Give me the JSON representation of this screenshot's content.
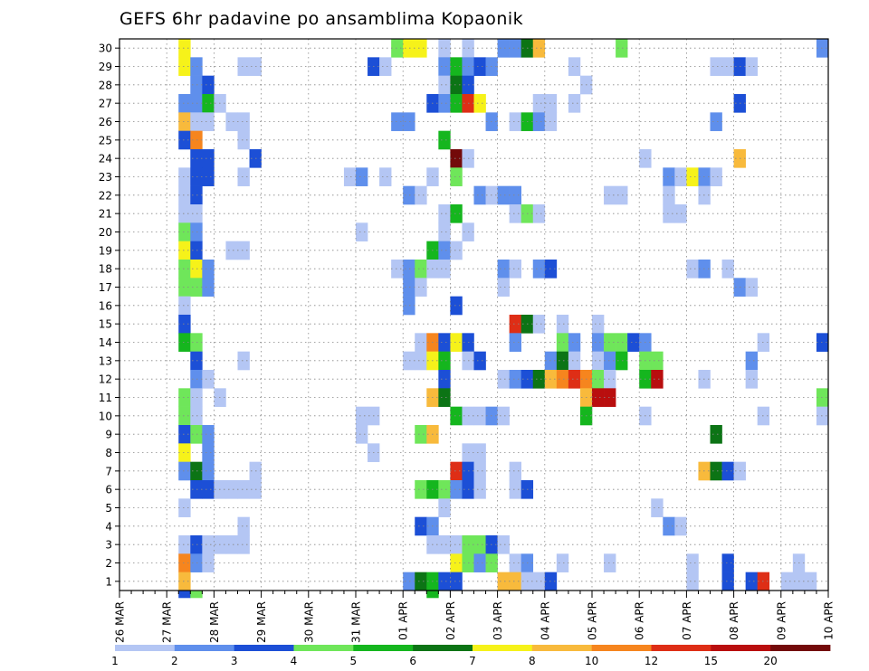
{
  "chart_data": {
    "type": "heatmap",
    "title": "GEFS 6hr padavine po ansamblima Kopaonik",
    "xlabel": "",
    "ylabel": "",
    "x_tick_labels": [
      "26 MAR",
      "27 MAR",
      "28 MAR",
      "29 MAR",
      "30 MAR",
      "31 MAR",
      "01 APR",
      "02 APR",
      "03 APR",
      "04 APR",
      "05 APR",
      "06 APR",
      "07 APR",
      "08 APR",
      "09 APR",
      "10 APR"
    ],
    "y_tick_labels": [
      "1",
      "2",
      "3",
      "4",
      "5",
      "6",
      "7",
      "8",
      "9",
      "10",
      "11",
      "12",
      "13",
      "14",
      "15",
      "16",
      "17",
      "18",
      "19",
      "20",
      "21",
      "22",
      "23",
      "24",
      "25",
      "26",
      "27",
      "28",
      "29",
      "30"
    ],
    "x_step_hours": 6,
    "x_step_count": 60,
    "ylim": [
      0.5,
      30.5
    ],
    "grid": true,
    "legend_position": "bottom",
    "colorbar": {
      "boundaries": [
        "1",
        "2",
        "3",
        "4",
        "5",
        "6",
        "7",
        "8",
        "10",
        "12",
        "15",
        "20"
      ],
      "colors": [
        "#b4c6f4",
        "#5f8fec",
        "#1c4fd6",
        "#6fe65a",
        "#15b61e",
        "#0c7415",
        "#f6f21a",
        "#f8ba3c",
        "#f6851e",
        "#de2e16",
        "#b90e0e",
        "#730a0a"
      ]
    },
    "cells": [
      [
        30,
        5,
        6
      ],
      [
        30,
        23,
        3
      ],
      [
        30,
        24,
        6
      ],
      [
        30,
        25,
        6
      ],
      [
        30,
        27,
        0
      ],
      [
        30,
        29,
        0
      ],
      [
        30,
        32,
        1
      ],
      [
        30,
        33,
        1
      ],
      [
        30,
        34,
        5
      ],
      [
        30,
        35,
        7
      ],
      [
        30,
        42,
        3
      ],
      [
        30,
        59,
        1
      ],
      [
        29,
        5,
        6
      ],
      [
        29,
        6,
        1
      ],
      [
        29,
        10,
        0
      ],
      [
        29,
        11,
        0
      ],
      [
        29,
        21,
        2
      ],
      [
        29,
        22,
        0
      ],
      [
        29,
        27,
        1
      ],
      [
        29,
        28,
        4
      ],
      [
        29,
        29,
        1
      ],
      [
        29,
        30,
        2
      ],
      [
        29,
        31,
        1
      ],
      [
        29,
        38,
        0
      ],
      [
        29,
        50,
        0
      ],
      [
        29,
        51,
        0
      ],
      [
        29,
        52,
        2
      ],
      [
        29,
        53,
        0
      ],
      [
        28,
        6,
        1
      ],
      [
        28,
        7,
        2
      ],
      [
        28,
        27,
        0
      ],
      [
        28,
        28,
        5
      ],
      [
        28,
        29,
        2
      ],
      [
        28,
        39,
        0
      ],
      [
        27,
        5,
        1
      ],
      [
        27,
        6,
        1
      ],
      [
        27,
        7,
        4
      ],
      [
        27,
        8,
        0
      ],
      [
        27,
        26,
        2
      ],
      [
        27,
        27,
        1
      ],
      [
        27,
        28,
        4
      ],
      [
        27,
        29,
        9
      ],
      [
        27,
        30,
        6
      ],
      [
        27,
        35,
        0
      ],
      [
        27,
        36,
        0
      ],
      [
        27,
        38,
        0
      ],
      [
        27,
        52,
        2
      ],
      [
        26,
        5,
        7
      ],
      [
        26,
        6,
        0
      ],
      [
        26,
        7,
        0
      ],
      [
        26,
        9,
        0
      ],
      [
        26,
        10,
        0
      ],
      [
        26,
        23,
        1
      ],
      [
        26,
        24,
        1
      ],
      [
        26,
        31,
        1
      ],
      [
        26,
        33,
        0
      ],
      [
        26,
        34,
        4
      ],
      [
        26,
        35,
        1
      ],
      [
        26,
        36,
        0
      ],
      [
        26,
        50,
        1
      ],
      [
        25,
        5,
        2
      ],
      [
        25,
        6,
        8
      ],
      [
        25,
        10,
        0
      ],
      [
        25,
        27,
        4
      ],
      [
        24,
        6,
        2
      ],
      [
        24,
        7,
        2
      ],
      [
        24,
        11,
        2
      ],
      [
        24,
        28,
        11
      ],
      [
        24,
        29,
        0
      ],
      [
        24,
        44,
        0
      ],
      [
        24,
        52,
        7
      ],
      [
        23,
        5,
        0
      ],
      [
        23,
        6,
        2
      ],
      [
        23,
        7,
        2
      ],
      [
        23,
        10,
        0
      ],
      [
        23,
        19,
        0
      ],
      [
        23,
        20,
        1
      ],
      [
        23,
        22,
        0
      ],
      [
        23,
        26,
        0
      ],
      [
        23,
        28,
        3
      ],
      [
        23,
        46,
        1
      ],
      [
        23,
        47,
        0
      ],
      [
        23,
        48,
        6
      ],
      [
        23,
        49,
        1
      ],
      [
        23,
        50,
        0
      ],
      [
        22,
        5,
        0
      ],
      [
        22,
        6,
        2
      ],
      [
        22,
        24,
        1
      ],
      [
        22,
        25,
        0
      ],
      [
        22,
        30,
        1
      ],
      [
        22,
        31,
        0
      ],
      [
        22,
        32,
        1
      ],
      [
        22,
        33,
        1
      ],
      [
        22,
        41,
        0
      ],
      [
        22,
        42,
        0
      ],
      [
        22,
        46,
        0
      ],
      [
        22,
        49,
        0
      ],
      [
        21,
        5,
        0
      ],
      [
        21,
        6,
        0
      ],
      [
        21,
        27,
        0
      ],
      [
        21,
        28,
        4
      ],
      [
        21,
        33,
        0
      ],
      [
        21,
        34,
        3
      ],
      [
        21,
        35,
        0
      ],
      [
        21,
        46,
        0
      ],
      [
        21,
        47,
        0
      ],
      [
        20,
        5,
        3
      ],
      [
        20,
        6,
        1
      ],
      [
        20,
        20,
        0
      ],
      [
        20,
        27,
        0
      ],
      [
        20,
        29,
        0
      ],
      [
        19,
        5,
        6
      ],
      [
        19,
        6,
        2
      ],
      [
        19,
        9,
        0
      ],
      [
        19,
        10,
        0
      ],
      [
        19,
        26,
        4
      ],
      [
        19,
        27,
        1
      ],
      [
        19,
        28,
        0
      ],
      [
        18,
        5,
        3
      ],
      [
        18,
        6,
        6
      ],
      [
        18,
        7,
        1
      ],
      [
        18,
        23,
        0
      ],
      [
        18,
        24,
        1
      ],
      [
        18,
        25,
        3
      ],
      [
        18,
        26,
        0
      ],
      [
        18,
        27,
        0
      ],
      [
        18,
        32,
        1
      ],
      [
        18,
        33,
        0
      ],
      [
        18,
        35,
        1
      ],
      [
        18,
        36,
        2
      ],
      [
        18,
        48,
        0
      ],
      [
        18,
        49,
        1
      ],
      [
        18,
        51,
        0
      ],
      [
        17,
        5,
        3
      ],
      [
        17,
        6,
        3
      ],
      [
        17,
        7,
        1
      ],
      [
        17,
        24,
        1
      ],
      [
        17,
        25,
        0
      ],
      [
        17,
        32,
        0
      ],
      [
        17,
        52,
        1
      ],
      [
        17,
        53,
        0
      ],
      [
        16,
        5,
        0
      ],
      [
        16,
        24,
        1
      ],
      [
        16,
        28,
        2
      ],
      [
        15,
        5,
        2
      ],
      [
        15,
        33,
        9
      ],
      [
        15,
        34,
        5
      ],
      [
        15,
        35,
        0
      ],
      [
        15,
        37,
        0
      ],
      [
        15,
        40,
        0
      ],
      [
        14,
        5,
        4
      ],
      [
        14,
        6,
        3
      ],
      [
        14,
        25,
        0
      ],
      [
        14,
        26,
        8
      ],
      [
        14,
        27,
        2
      ],
      [
        14,
        28,
        6
      ],
      [
        14,
        29,
        2
      ],
      [
        14,
        33,
        1
      ],
      [
        14,
        37,
        3
      ],
      [
        14,
        38,
        1
      ],
      [
        14,
        40,
        1
      ],
      [
        14,
        41,
        3
      ],
      [
        14,
        42,
        3
      ],
      [
        14,
        43,
        2
      ],
      [
        14,
        44,
        1
      ],
      [
        14,
        54,
        0
      ],
      [
        14,
        59,
        2
      ],
      [
        13,
        6,
        2
      ],
      [
        13,
        10,
        0
      ],
      [
        13,
        24,
        0
      ],
      [
        13,
        25,
        0
      ],
      [
        13,
        26,
        6
      ],
      [
        13,
        27,
        4
      ],
      [
        13,
        29,
        0
      ],
      [
        13,
        30,
        2
      ],
      [
        13,
        36,
        1
      ],
      [
        13,
        37,
        5
      ],
      [
        13,
        38,
        0
      ],
      [
        13,
        40,
        0
      ],
      [
        13,
        41,
        1
      ],
      [
        13,
        42,
        4
      ],
      [
        13,
        44,
        3
      ],
      [
        13,
        45,
        3
      ],
      [
        13,
        53,
        1
      ],
      [
        12,
        6,
        1
      ],
      [
        12,
        7,
        0
      ],
      [
        12,
        27,
        2
      ],
      [
        12,
        32,
        0
      ],
      [
        12,
        33,
        1
      ],
      [
        12,
        34,
        2
      ],
      [
        12,
        35,
        5
      ],
      [
        12,
        36,
        7
      ],
      [
        12,
        37,
        8
      ],
      [
        12,
        38,
        9
      ],
      [
        12,
        39,
        8
      ],
      [
        12,
        40,
        3
      ],
      [
        12,
        41,
        0
      ],
      [
        12,
        44,
        4
      ],
      [
        12,
        45,
        10
      ],
      [
        12,
        49,
        0
      ],
      [
        12,
        53,
        0
      ],
      [
        11,
        5,
        3
      ],
      [
        11,
        6,
        0
      ],
      [
        11,
        8,
        0
      ],
      [
        11,
        26,
        7
      ],
      [
        11,
        27,
        5
      ],
      [
        11,
        39,
        7
      ],
      [
        11,
        40,
        10
      ],
      [
        11,
        41,
        10
      ],
      [
        11,
        59,
        3
      ],
      [
        10,
        5,
        3
      ],
      [
        10,
        6,
        0
      ],
      [
        10,
        20,
        0
      ],
      [
        10,
        21,
        0
      ],
      [
        10,
        28,
        4
      ],
      [
        10,
        29,
        0
      ],
      [
        10,
        30,
        0
      ],
      [
        10,
        31,
        1
      ],
      [
        10,
        32,
        0
      ],
      [
        10,
        39,
        4
      ],
      [
        10,
        44,
        0
      ],
      [
        10,
        54,
        0
      ],
      [
        10,
        59,
        0
      ],
      [
        9,
        5,
        2
      ],
      [
        9,
        6,
        3
      ],
      [
        9,
        7,
        1
      ],
      [
        9,
        20,
        0
      ],
      [
        9,
        25,
        3
      ],
      [
        9,
        26,
        7
      ],
      [
        9,
        50,
        5
      ],
      [
        8,
        5,
        6
      ],
      [
        8,
        7,
        1
      ],
      [
        8,
        21,
        0
      ],
      [
        8,
        29,
        0
      ],
      [
        8,
        30,
        0
      ],
      [
        7,
        5,
        1
      ],
      [
        7,
        6,
        5
      ],
      [
        7,
        7,
        1
      ],
      [
        7,
        11,
        0
      ],
      [
        7,
        28,
        9
      ],
      [
        7,
        29,
        2
      ],
      [
        7,
        30,
        0
      ],
      [
        7,
        33,
        0
      ],
      [
        7,
        49,
        7
      ],
      [
        7,
        50,
        5
      ],
      [
        7,
        51,
        2
      ],
      [
        7,
        52,
        0
      ],
      [
        6,
        6,
        2
      ],
      [
        6,
        7,
        2
      ],
      [
        6,
        8,
        0
      ],
      [
        6,
        9,
        0
      ],
      [
        6,
        10,
        0
      ],
      [
        6,
        11,
        0
      ],
      [
        6,
        25,
        3
      ],
      [
        6,
        26,
        4
      ],
      [
        6,
        27,
        3
      ],
      [
        6,
        28,
        1
      ],
      [
        6,
        29,
        2
      ],
      [
        6,
        30,
        0
      ],
      [
        6,
        33,
        0
      ],
      [
        6,
        34,
        2
      ],
      [
        5,
        5,
        0
      ],
      [
        5,
        27,
        0
      ],
      [
        5,
        45,
        0
      ],
      [
        4,
        10,
        0
      ],
      [
        4,
        25,
        2
      ],
      [
        4,
        26,
        1
      ],
      [
        4,
        46,
        1
      ],
      [
        4,
        47,
        0
      ],
      [
        3,
        5,
        0
      ],
      [
        3,
        6,
        2
      ],
      [
        3,
        7,
        0
      ],
      [
        3,
        8,
        0
      ],
      [
        3,
        9,
        0
      ],
      [
        3,
        10,
        0
      ],
      [
        3,
        26,
        0
      ],
      [
        3,
        27,
        0
      ],
      [
        3,
        28,
        0
      ],
      [
        3,
        29,
        3
      ],
      [
        3,
        30,
        3
      ],
      [
        3,
        31,
        2
      ],
      [
        3,
        32,
        0
      ],
      [
        2,
        5,
        8
      ],
      [
        2,
        6,
        1
      ],
      [
        2,
        7,
        0
      ],
      [
        2,
        28,
        6
      ],
      [
        2,
        29,
        3
      ],
      [
        2,
        30,
        1
      ],
      [
        2,
        31,
        3
      ],
      [
        2,
        33,
        0
      ],
      [
        2,
        34,
        1
      ],
      [
        2,
        37,
        0
      ],
      [
        2,
        41,
        0
      ],
      [
        2,
        48,
        0
      ],
      [
        2,
        51,
        2
      ],
      [
        2,
        57,
        0
      ],
      [
        1,
        5,
        7
      ],
      [
        1,
        24,
        1
      ],
      [
        1,
        25,
        5
      ],
      [
        1,
        26,
        4
      ],
      [
        1,
        27,
        2
      ],
      [
        1,
        28,
        2
      ],
      [
        1,
        32,
        7
      ],
      [
        1,
        33,
        7
      ],
      [
        1,
        34,
        0
      ],
      [
        1,
        35,
        0
      ],
      [
        1,
        36,
        2
      ],
      [
        1,
        48,
        0
      ],
      [
        1,
        51,
        2
      ],
      [
        1,
        53,
        2
      ],
      [
        1,
        54,
        9
      ],
      [
        1,
        56,
        0
      ],
      [
        1,
        57,
        0
      ],
      [
        1,
        58,
        0
      ],
      [
        0,
        5,
        2
      ],
      [
        0,
        6,
        3
      ],
      [
        0,
        26,
        4
      ]
    ]
  }
}
